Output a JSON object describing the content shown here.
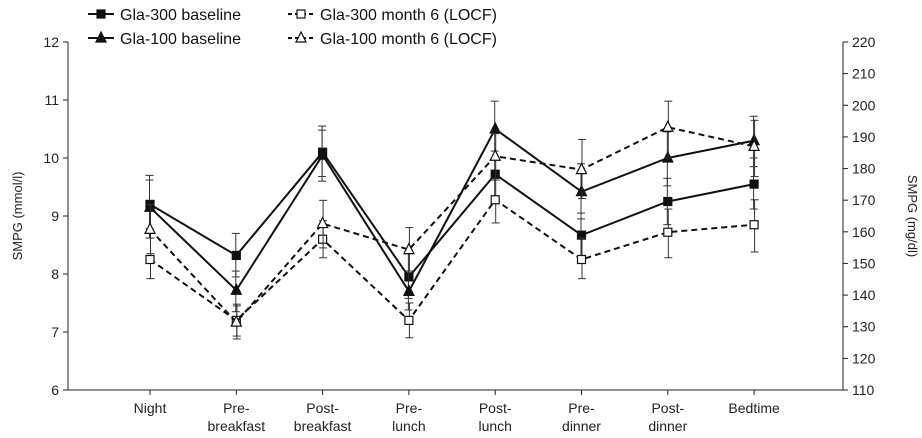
{
  "chart_data": {
    "type": "line",
    "categories": [
      "Night",
      "Pre-\nbreakfast",
      "Post-\nbreakfast",
      "Pre-\nlunch",
      "Post-\nlunch",
      "Pre-\ndinner",
      "Post-\ndinner",
      "Bedtime"
    ],
    "y_left": {
      "label": "SMPG (mmol/l)",
      "range": [
        6,
        12
      ],
      "ticks": [
        "6",
        "7",
        "8",
        "9",
        "10",
        "11",
        "12"
      ]
    },
    "y_right": {
      "label": "SMPG (mg/dl)",
      "range": [
        110,
        220
      ],
      "ticks": [
        "110",
        "120",
        "130",
        "140",
        "150",
        "160",
        "170",
        "180",
        "190",
        "200",
        "210",
        "220"
      ]
    },
    "series": [
      {
        "name": "Gla-300 baseline",
        "style": "solid",
        "marker": "square",
        "filled": true,
        "values": [
          9.2,
          8.32,
          10.1,
          7.95,
          9.72,
          8.67,
          9.25,
          9.55
        ],
        "err_lo": [
          8.78,
          7.95,
          9.68,
          7.58,
          9.32,
          8.3,
          8.85,
          9.12
        ],
        "err_hi": [
          9.62,
          8.7,
          10.55,
          8.35,
          10.12,
          9.05,
          9.65,
          10.0
        ]
      },
      {
        "name": "Gla-300 month 6 (LOCF)",
        "style": "dashed",
        "marker": "square",
        "filled": false,
        "values": [
          8.25,
          7.2,
          8.6,
          7.2,
          9.28,
          8.25,
          8.72,
          8.85
        ],
        "err_lo": [
          7.92,
          6.93,
          8.28,
          6.9,
          8.88,
          7.92,
          8.28,
          8.38
        ],
        "err_hi": [
          8.62,
          7.48,
          8.92,
          7.5,
          9.62,
          8.62,
          9.12,
          9.28
        ]
      },
      {
        "name": "Gla-100 baseline",
        "style": "solid",
        "marker": "triangle",
        "filled": true,
        "values": [
          9.15,
          7.72,
          10.05,
          7.7,
          10.5,
          9.42,
          10.0,
          10.3
        ],
        "err_lo": [
          8.62,
          7.35,
          9.6,
          7.38,
          9.98,
          8.95,
          9.52,
          9.85
        ],
        "err_hi": [
          9.7,
          8.05,
          10.48,
          8.05,
          10.98,
          9.9,
          10.45,
          10.72
        ]
      },
      {
        "name": "Gla-100 month 6 (LOCF)",
        "style": "dashed",
        "marker": "triangle",
        "filled": false,
        "values": [
          8.77,
          7.17,
          8.87,
          8.42,
          10.03,
          9.8,
          10.53,
          10.2
        ],
        "err_lo": [
          8.35,
          6.88,
          8.45,
          8.05,
          9.62,
          9.3,
          10.0,
          9.68
        ],
        "err_hi": [
          9.2,
          7.45,
          9.27,
          8.8,
          10.42,
          10.32,
          10.98,
          10.65
        ]
      }
    ],
    "legend_placement": "top-left",
    "grid": false
  }
}
